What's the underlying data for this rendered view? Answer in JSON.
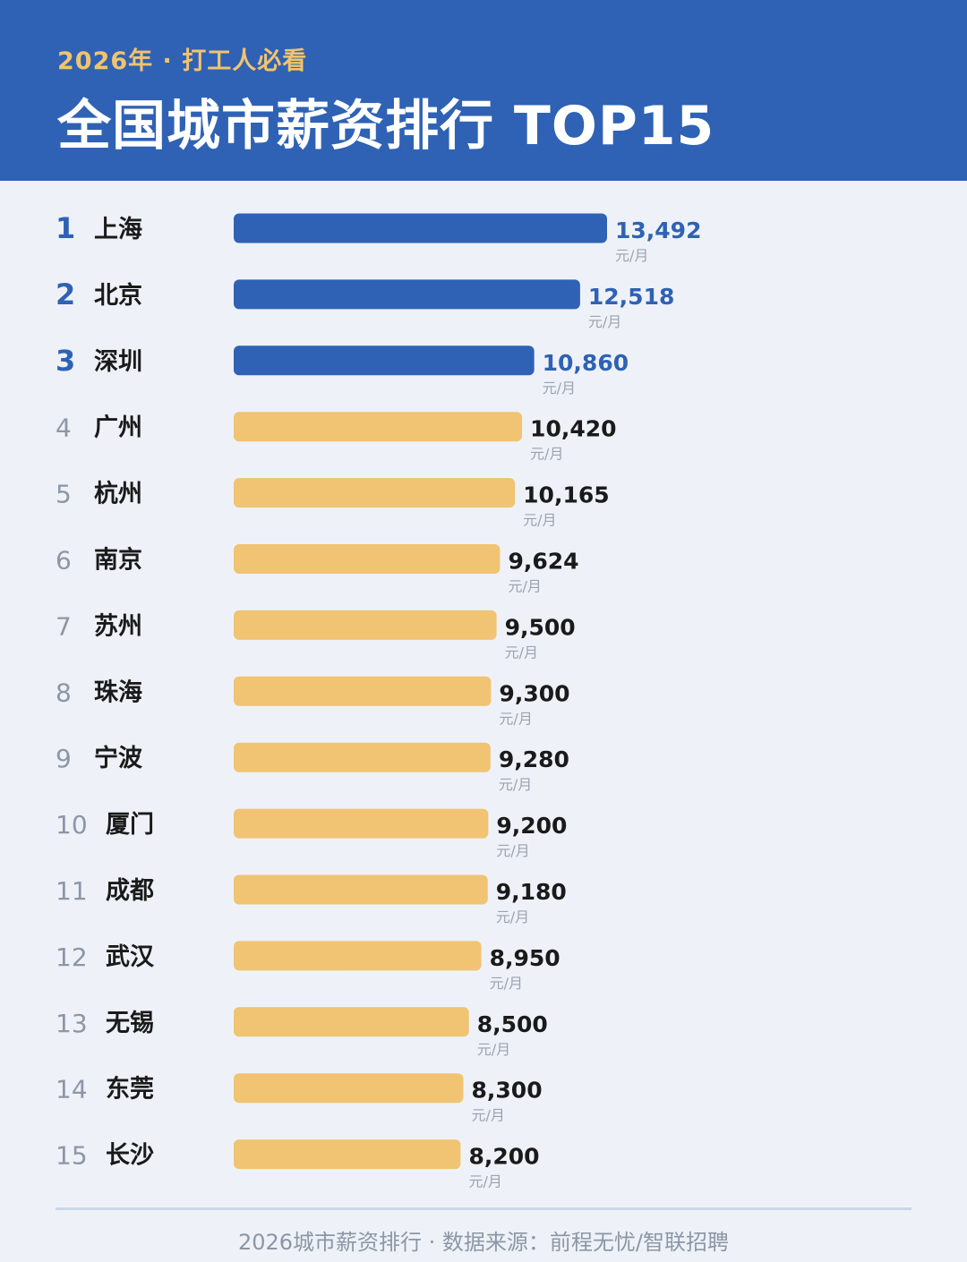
{
  "header": {
    "subtitle": "2026年 · 打工人必看",
    "title": "全国城市薪资排行 TOP15"
  },
  "footer": {
    "source": "2026城市薪资排行 · 数据来源：前程无忧/智联招聘"
  },
  "colors": {
    "header_bg": "#2f62b5",
    "top3_bar": "#2f62b5",
    "top3_value": "#2f62b5",
    "other_bar": "#f0c473",
    "other_value": "#1a1a1a",
    "rank_top": "#2f62b5",
    "rank_other": "#8c96a6",
    "city": "#1a1a1a",
    "unit": "#9aa3b0",
    "page_bg": "#eef2f8"
  },
  "chart_data": {
    "type": "bar",
    "orientation": "horizontal",
    "highlight_top": 3,
    "unit": "元/月",
    "rows": [
      {
        "rank": "1",
        "city": "上海",
        "value": 13492,
        "label": "13,492"
      },
      {
        "rank": "2",
        "city": "北京",
        "value": 12518,
        "label": "12,518"
      },
      {
        "rank": "3",
        "city": "深圳",
        "value": 10860,
        "label": "10,860"
      },
      {
        "rank": "4",
        "city": "广州",
        "value": 10420,
        "label": "10,420"
      },
      {
        "rank": "5",
        "city": "杭州",
        "value": 10165,
        "label": "10,165"
      },
      {
        "rank": "6",
        "city": "南京",
        "value": 9624,
        "label": "9,624"
      },
      {
        "rank": "7",
        "city": "苏州",
        "value": 9500,
        "label": "9,500"
      },
      {
        "rank": "8",
        "city": "珠海",
        "value": 9300,
        "label": "9,300"
      },
      {
        "rank": "9",
        "city": "宁波",
        "value": 9280,
        "label": "9,280"
      },
      {
        "rank": "10",
        "city": "厦门",
        "value": 9200,
        "label": "9,200"
      },
      {
        "rank": "11",
        "city": "成都",
        "value": 9180,
        "label": "9,180"
      },
      {
        "rank": "12",
        "city": "武汉",
        "value": 8950,
        "label": "8,950"
      },
      {
        "rank": "13",
        "city": "无锡",
        "value": 8500,
        "label": "8,500"
      },
      {
        "rank": "14",
        "city": "东莞",
        "value": 8300,
        "label": "8,300"
      },
      {
        "rank": "15",
        "city": "长沙",
        "value": 8200,
        "label": "8,200"
      }
    ]
  }
}
